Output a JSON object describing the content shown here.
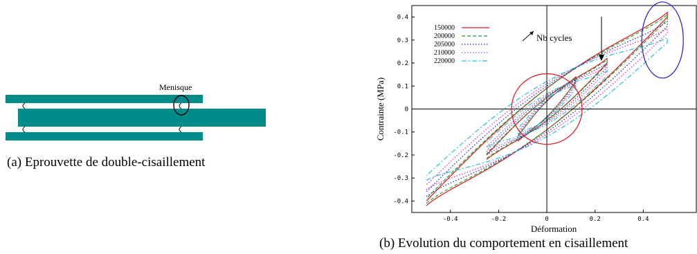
{
  "figure_a": {
    "label": "Menisque",
    "caption": "(a)  Eprouvette de double-cisaillement"
  },
  "figure_b": {
    "caption": "(b)  Evolution du comportement en cisaillement",
    "annotation": "Nb cycles",
    "colors": {
      "150000": "#e0141e",
      "200000": "#21a321",
      "205000": "#1c1cc8",
      "210000": "#e020d0",
      "220000": "#20c0d8",
      "circle_center": "#e0141e",
      "circle_corner": "#1c1cc8"
    }
  },
  "chart_data": {
    "type": "line",
    "xlabel": "Déformation",
    "ylabel": "Contrainte (MPa)",
    "xlim": [
      -0.56,
      0.62
    ],
    "ylim": [
      -0.45,
      0.45
    ],
    "x_ticks": [
      "-0.4",
      "-0.2",
      "0",
      "0.2",
      "0.4"
    ],
    "y_ticks": [
      "0.4",
      "0.3",
      "0.2",
      "0.1",
      "0",
      "-0.1",
      "-0.2",
      "-0.3",
      "-0.4"
    ],
    "legend_position": "top-left",
    "grid": false,
    "series": [
      {
        "name": "150000",
        "style": "solid",
        "amp": 0.5,
        "peak": 0.4,
        "hyst": 0.09
      },
      {
        "name": "200000",
        "style": "dashed",
        "amp": 0.5,
        "peak": 0.39,
        "hyst": 0.09
      },
      {
        "name": "205000",
        "style": "dotted",
        "amp": 0.5,
        "peak": 0.36,
        "hyst": 0.1
      },
      {
        "name": "210000",
        "style": "dotted",
        "amp": 0.5,
        "peak": 0.33,
        "hyst": 0.11
      },
      {
        "name": "220000",
        "style": "dashdot",
        "amp": 0.5,
        "peak": 0.29,
        "hyst": 0.12
      }
    ]
  }
}
